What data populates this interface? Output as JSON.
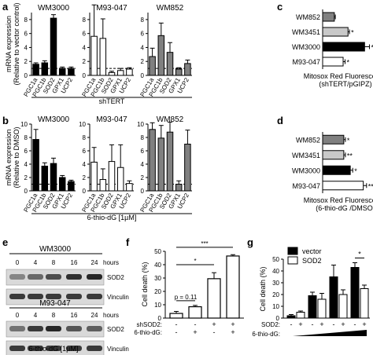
{
  "panel_letters": [
    "a",
    "b",
    "c",
    "d",
    "e",
    "f",
    "g"
  ],
  "chart_data": [
    {
      "id": "a",
      "type": "bar",
      "ylabel": [
        "mRNA expression",
        "(Relative to vector control)"
      ],
      "group_label": "shTERT",
      "categories": [
        "PGC1a",
        "PGC1b",
        "SOD2",
        "GPX1",
        "UCP2"
      ],
      "ylim": [
        0,
        9
      ],
      "yticks": [
        0,
        2,
        4,
        6,
        8
      ],
      "reference_line": 1,
      "panels": [
        {
          "title": "WM3000",
          "fill": "#000000",
          "values": [
            1.6,
            1.8,
            8.2,
            1.0,
            1.0
          ],
          "errors": [
            0.2,
            0.3,
            0.5,
            0.2,
            0.2
          ]
        },
        {
          "title": "M93-047",
          "fill": "#ffffff",
          "values": [
            5.6,
            5.3,
            0.4,
            0.7,
            0.9
          ],
          "errors": [
            4.5,
            2.8,
            0.2,
            0.3,
            0.2
          ]
        },
        {
          "title": "WM852",
          "fill": "#808080",
          "values": [
            2.7,
            5.7,
            3.3,
            0.9,
            1.7
          ],
          "errors": [
            1.2,
            1.8,
            1.4,
            0.2,
            0.5
          ]
        }
      ]
    },
    {
      "id": "b",
      "type": "bar",
      "ylabel": [
        "mRNA expression",
        "(Relative to DMSO)"
      ],
      "group_label": "6-thio-dG [1µM]",
      "categories": [
        "PGC1a",
        "PGC1b",
        "SOD2",
        "GPX1",
        "UCP2"
      ],
      "ylim": [
        0,
        10
      ],
      "yticks": [
        0,
        2,
        4,
        6,
        8,
        10
      ],
      "reference_line": 1,
      "panels": [
        {
          "title": "WM3000",
          "fill": "#000000",
          "values": [
            7.7,
            3.7,
            4.1,
            2.0,
            1.4
          ],
          "errors": [
            1.5,
            0.5,
            0.8,
            0.3,
            0.2
          ]
        },
        {
          "title": "M93-047",
          "fill": "#ffffff",
          "values": [
            4.3,
            1.7,
            4.4,
            3.5,
            1.1
          ],
          "errors": [
            2.2,
            1.6,
            2.5,
            3.4,
            0.4
          ]
        },
        {
          "title": "WM852",
          "fill": "#808080",
          "values": [
            9.2,
            7.9,
            8.8,
            1.0,
            7.0
          ],
          "errors": [
            1.0,
            1.9,
            1.5,
            0.5,
            2.1
          ]
        }
      ]
    },
    {
      "id": "c",
      "type": "bar",
      "orientation": "horizontal",
      "xlabel": [
        "Mitosox Red Fluorescence",
        "(shTERT/pGIPZ)"
      ],
      "categories": [
        "WM852",
        "WM3451",
        "WM3000",
        "M93-047"
      ],
      "fills": [
        "#808080",
        "#c8c8c8",
        "#000000",
        "#ffffff"
      ],
      "values": [
        1.2,
        2.6,
        4.3,
        2.1
      ],
      "errors": [
        0.1,
        0.15,
        0.5,
        0.2
      ],
      "stars": [
        "",
        "*",
        "*",
        "*"
      ],
      "xlim": [
        0,
        5
      ]
    },
    {
      "id": "d",
      "type": "bar",
      "orientation": "horizontal",
      "xlabel": [
        "Mitosox Red Fluorescence",
        "(6-thio-dG /DMSO)"
      ],
      "categories": [
        "WM852",
        "WM3451",
        "WM3000",
        "M93-047"
      ],
      "fills": [
        "#808080",
        "#c8c8c8",
        "#000000",
        "#ffffff"
      ],
      "values": [
        1.3,
        1.3,
        1.7,
        2.5
      ],
      "errors": [
        0.1,
        0.1,
        0.15,
        0.2
      ],
      "stars": [
        "*",
        "**",
        "*",
        "**"
      ],
      "xlim": [
        0,
        3
      ]
    },
    {
      "id": "f",
      "type": "bar",
      "ylabel": [
        "Cell death (%)"
      ],
      "ylim": [
        0,
        50
      ],
      "yticks": [
        0,
        10,
        20,
        30,
        40,
        50
      ],
      "values": [
        3.5,
        8.5,
        29.5,
        46.5
      ],
      "errors": [
        1.5,
        1.0,
        4.5,
        1.0
      ],
      "row_labels": [
        "shSOD2:",
        "6-thio-dG:"
      ],
      "rows": [
        [
          "-",
          "-",
          "+",
          "+"
        ],
        [
          "-",
          "+",
          "-",
          "+"
        ]
      ],
      "annotations": [
        {
          "text": "p = 0.11",
          "from": 0,
          "to": 1,
          "level": 13
        },
        {
          "text": "*",
          "from": 0,
          "to": 2,
          "level": 40
        },
        {
          "text": "***",
          "from": 0,
          "to": 3,
          "level": 53
        }
      ]
    },
    {
      "id": "g",
      "type": "bar",
      "ylabel": [
        "Cell death (%)"
      ],
      "ylim": [
        0,
        50
      ],
      "yticks": [
        0,
        10,
        20,
        30,
        40,
        50
      ],
      "series": [
        {
          "name": "vector",
          "fill": "#000000",
          "values": [
            2,
            19,
            35,
            43
          ],
          "errors": [
            1,
            3,
            10,
            4
          ]
        },
        {
          "name": "SOD2",
          "fill": "#ffffff",
          "values": [
            5,
            16,
            20,
            25
          ],
          "errors": [
            1,
            5,
            4,
            3
          ]
        }
      ],
      "row_labels": [
        "SOD2:",
        "6-thio-dG:"
      ],
      "sod2_row": [
        "-",
        "+",
        "-",
        "+",
        "-",
        "+",
        "-",
        "+"
      ],
      "annotations": [
        {
          "text": "*",
          "from_group": 3,
          "level": 51
        }
      ]
    }
  ],
  "blot": {
    "cell_lines": [
      "WM3000",
      "M93-047"
    ],
    "timepoints": [
      "0",
      "4",
      "8",
      "16",
      "24"
    ],
    "time_unit": "hours",
    "bands": [
      "SOD2",
      "Vinculin"
    ],
    "sod2_intensity": [
      [
        0.35,
        0.5,
        0.65,
        0.8,
        0.85
      ],
      [
        0.45,
        0.75,
        0.85,
        0.6,
        0.55
      ]
    ],
    "vinculin_intensity": [
      [
        0.75,
        0.75,
        0.75,
        0.75,
        0.75
      ],
      [
        0.75,
        0.75,
        0.75,
        0.75,
        0.75
      ]
    ],
    "treatment_label": "6-thio-dG [1µM]"
  }
}
